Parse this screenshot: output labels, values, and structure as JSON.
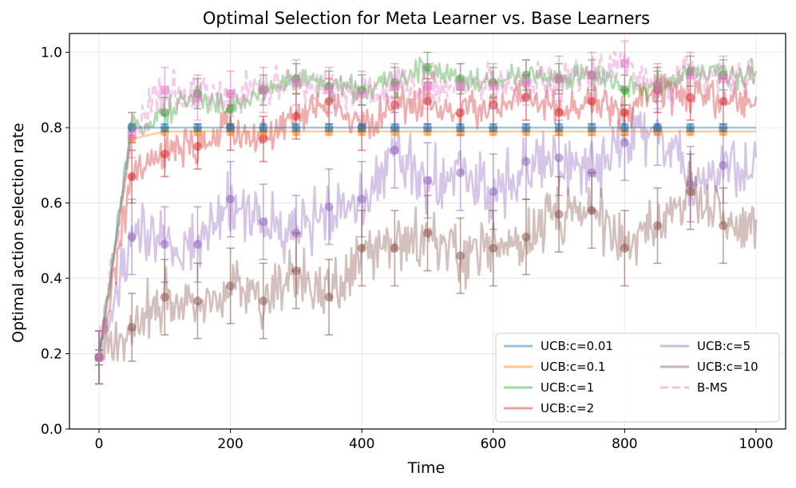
{
  "chart_data": {
    "type": "line",
    "title": "Optimal Selection for Meta Learner vs. Base Learners",
    "xlabel": "Time",
    "ylabel": "Optimal action selection rate",
    "xlim": [
      -45,
      1045
    ],
    "ylim": [
      0.0,
      1.05
    ],
    "xticks": [
      0,
      200,
      400,
      600,
      800,
      1000
    ],
    "xtick_labels": [
      "0",
      "200",
      "400",
      "600",
      "800",
      "1000"
    ],
    "yticks": [
      0.0,
      0.2,
      0.4,
      0.6,
      0.8,
      1.0
    ],
    "ytick_labels": [
      "0.0",
      "0.2",
      "0.4",
      "0.6",
      "0.8",
      "1.0"
    ],
    "grid": true,
    "legend_position": "lower-right",
    "legend_columns": 2,
    "marker_x": [
      0,
      50,
      100,
      150,
      200,
      250,
      300,
      350,
      400,
      450,
      500,
      550,
      600,
      650,
      700,
      750,
      800,
      850,
      900,
      950
    ],
    "series": [
      {
        "name": "UCB:c=0.01",
        "color": "#1f77b4",
        "style": "solid",
        "noise": 0.0,
        "values": [
          0.19,
          0.8,
          0.8,
          0.8,
          0.8,
          0.8,
          0.8,
          0.8,
          0.8,
          0.8,
          0.8,
          0.8,
          0.8,
          0.8,
          0.8,
          0.8,
          0.8,
          0.8,
          0.8,
          0.8
        ],
        "errors": [
          0.02,
          0.01,
          0.01,
          0.01,
          0.01,
          0.01,
          0.01,
          0.01,
          0.01,
          0.01,
          0.01,
          0.01,
          0.01,
          0.01,
          0.01,
          0.01,
          0.01,
          0.01,
          0.01,
          0.01
        ]
      },
      {
        "name": "UCB:c=0.1",
        "color": "#ff7f0e",
        "style": "solid",
        "noise": 0.0,
        "values": [
          0.19,
          0.77,
          0.79,
          0.79,
          0.79,
          0.79,
          0.79,
          0.79,
          0.79,
          0.79,
          0.79,
          0.79,
          0.79,
          0.79,
          0.79,
          0.79,
          0.79,
          0.79,
          0.79,
          0.79
        ],
        "errors": [
          0.02,
          0.01,
          0.01,
          0.01,
          0.01,
          0.01,
          0.01,
          0.01,
          0.01,
          0.01,
          0.01,
          0.01,
          0.01,
          0.01,
          0.01,
          0.01,
          0.01,
          0.01,
          0.01,
          0.01
        ]
      },
      {
        "name": "UCB:c=1",
        "color": "#2ca02c",
        "style": "solid",
        "noise": 0.025,
        "values": [
          0.19,
          0.8,
          0.84,
          0.89,
          0.85,
          0.9,
          0.93,
          0.91,
          0.9,
          0.92,
          0.96,
          0.93,
          0.92,
          0.94,
          0.93,
          0.94,
          0.9,
          0.91,
          0.95,
          0.94
        ],
        "errors": [
          0.07,
          0.04,
          0.04,
          0.04,
          0.04,
          0.04,
          0.04,
          0.04,
          0.04,
          0.04,
          0.04,
          0.04,
          0.04,
          0.04,
          0.04,
          0.04,
          0.04,
          0.04,
          0.04,
          0.04
        ]
      },
      {
        "name": "UCB:c=2",
        "color": "#d62728",
        "style": "solid",
        "noise": 0.035,
        "values": [
          0.19,
          0.67,
          0.73,
          0.75,
          0.8,
          0.77,
          0.83,
          0.87,
          0.8,
          0.86,
          0.87,
          0.84,
          0.86,
          0.88,
          0.84,
          0.87,
          0.84,
          0.9,
          0.88,
          0.87
        ],
        "errors": [
          0.07,
          0.07,
          0.06,
          0.06,
          0.06,
          0.06,
          0.06,
          0.06,
          0.06,
          0.06,
          0.06,
          0.06,
          0.06,
          0.06,
          0.06,
          0.06,
          0.06,
          0.06,
          0.06,
          0.06
        ]
      },
      {
        "name": "UCB:c=5",
        "color": "#9467bd",
        "style": "solid",
        "noise": 0.06,
        "values": [
          0.19,
          0.51,
          0.49,
          0.49,
          0.61,
          0.55,
          0.52,
          0.59,
          0.61,
          0.74,
          0.66,
          0.68,
          0.63,
          0.71,
          0.72,
          0.68,
          0.76,
          0.8,
          0.65,
          0.7
        ],
        "errors": [
          0.07,
          0.1,
          0.1,
          0.1,
          0.1,
          0.1,
          0.1,
          0.1,
          0.1,
          0.1,
          0.1,
          0.1,
          0.1,
          0.1,
          0.1,
          0.1,
          0.1,
          0.1,
          0.1,
          0.1
        ]
      },
      {
        "name": "UCB:c=10",
        "color": "#8c564b",
        "style": "solid",
        "noise": 0.055,
        "values": [
          0.19,
          0.27,
          0.35,
          0.34,
          0.38,
          0.34,
          0.42,
          0.35,
          0.48,
          0.48,
          0.52,
          0.46,
          0.48,
          0.51,
          0.57,
          0.58,
          0.48,
          0.54,
          0.63,
          0.54
        ],
        "errors": [
          0.07,
          0.09,
          0.1,
          0.1,
          0.1,
          0.1,
          0.1,
          0.1,
          0.1,
          0.1,
          0.1,
          0.1,
          0.1,
          0.1,
          0.1,
          0.1,
          0.1,
          0.1,
          0.1,
          0.1
        ]
      },
      {
        "name": "B-MS",
        "color": "#e377c2",
        "style": "dashed",
        "noise": 0.04,
        "values": [
          0.19,
          0.78,
          0.9,
          0.88,
          0.89,
          0.9,
          0.92,
          0.9,
          0.89,
          0.91,
          0.91,
          0.91,
          0.91,
          0.92,
          0.93,
          0.94,
          0.97,
          0.91,
          0.94,
          0.93
        ],
        "errors": [
          0.07,
          0.06,
          0.06,
          0.06,
          0.06,
          0.06,
          0.06,
          0.06,
          0.06,
          0.06,
          0.06,
          0.06,
          0.06,
          0.06,
          0.06,
          0.06,
          0.06,
          0.06,
          0.06,
          0.06
        ]
      }
    ]
  }
}
